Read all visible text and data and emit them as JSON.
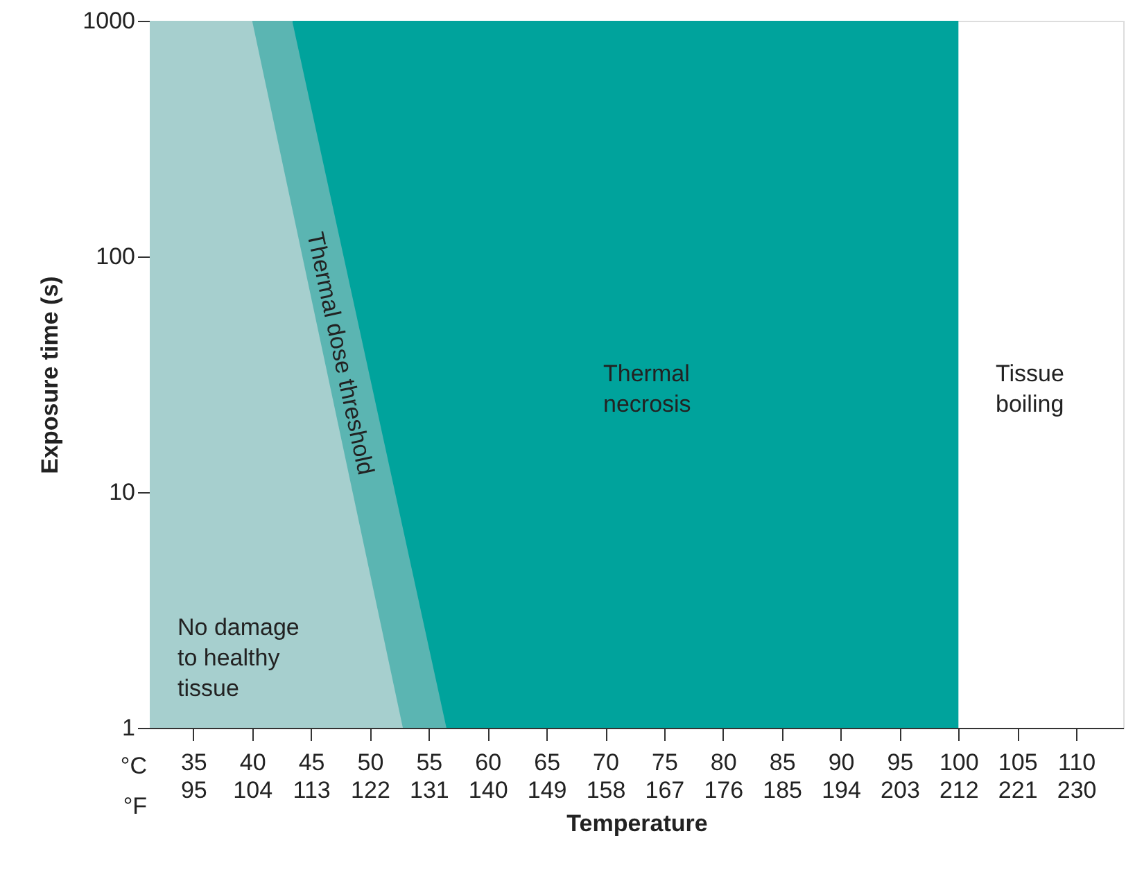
{
  "chart_data": {
    "type": "area",
    "xlabel": "Temperature",
    "ylabel": "Exposure time (s)",
    "series": [
      {
        "color": "#00a39c",
        "x": [
          43.4,
          100
        ],
        "values": [
          1000,
          1000
        ]
      },
      {
        "color": "#5bb5b2",
        "x": [
          40,
          43.4,
          56.5
        ],
        "values": [
          1000,
          1000,
          1
        ]
      },
      {
        "color": "#a6cfce",
        "x": [
          31.3,
          40,
          52.8
        ],
        "values": [
          1000,
          1000,
          1
        ]
      }
    ],
    "annotations": [
      "No damage\nto healthy\ntissue",
      "Thermal dose threshold",
      "Thermal\nnecrosis",
      "Tissue\nboiling",
      "°C",
      "°F"
    ],
    "log": "y",
    "xlim": [
      31.3,
      114
    ],
    "xticks": [
      35,
      40,
      45,
      50,
      55,
      60,
      65,
      70,
      75,
      80,
      85,
      90,
      95,
      100,
      105,
      110
    ],
    "x2lim": [
      88.34,
      237.2
    ],
    "x2ticks": [
      95,
      104,
      113,
      122,
      131,
      140,
      149,
      158,
      167,
      176,
      185,
      194,
      203,
      212,
      221,
      230
    ],
    "ylim": [
      1,
      1000
    ],
    "yticks": [
      1,
      10,
      100,
      1000
    ],
    "grid": false,
    "legend": false
  }
}
